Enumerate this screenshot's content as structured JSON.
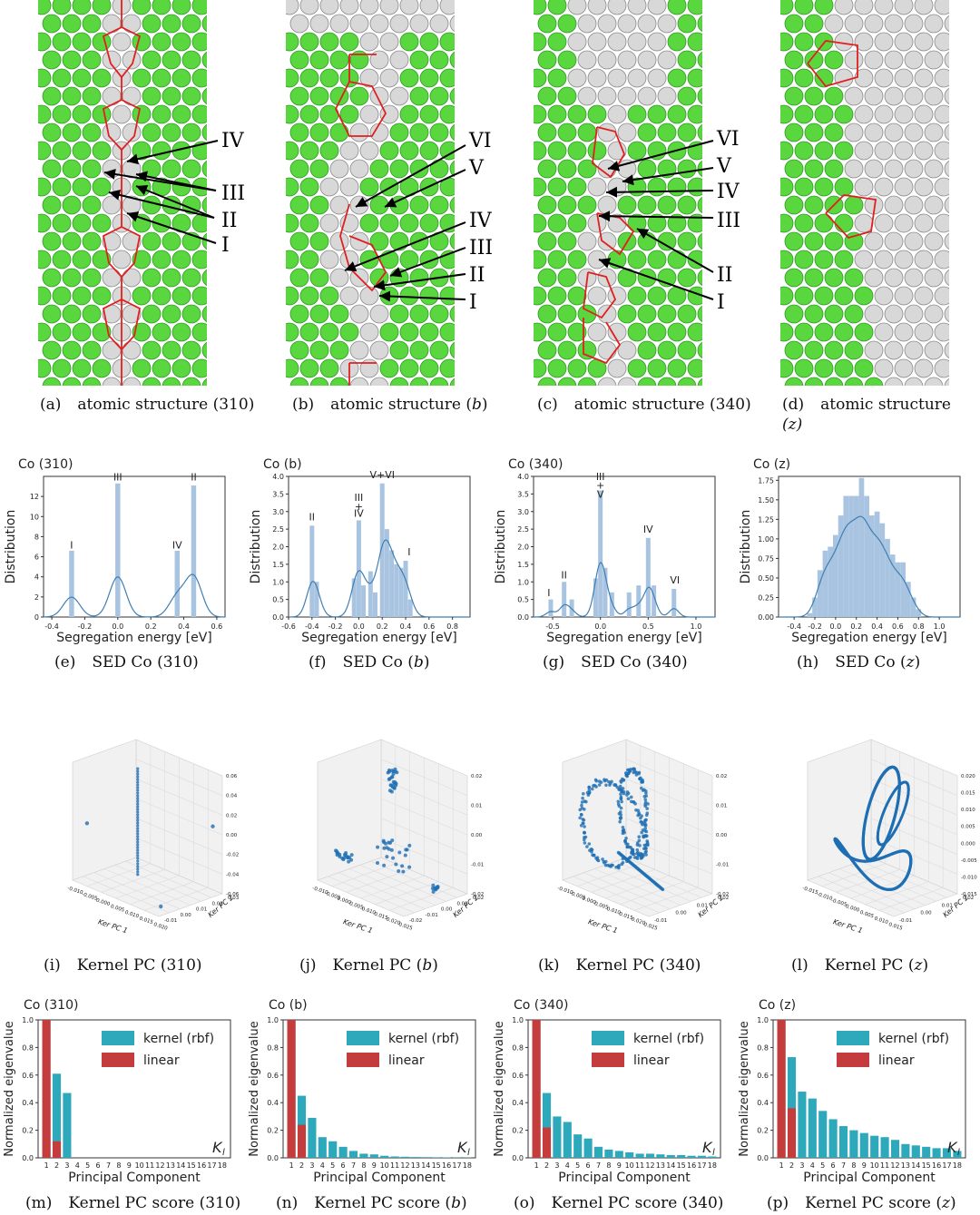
{
  "colors": {
    "green": "#5ad63f",
    "greenEdge": "#2f9a22",
    "grey": "#d8d8d8",
    "greyEdge": "#8a8a8a",
    "red": "#e02020",
    "hist": "#a9c4e0",
    "kde": "#3f7fb3",
    "kernel": "#2ea9bb",
    "linear": "#c43c3c",
    "scatter": "#1f6fb4"
  },
  "structure_panels": [
    {
      "letter": "(a)",
      "title": "atomic structure (310)",
      "labels": [
        "IV",
        "III",
        "II",
        "I"
      ]
    },
    {
      "letter": "(b)",
      "title": "atomic structure",
      "var": "b",
      "labels": [
        "VI",
        "V",
        "IV",
        "III",
        "II",
        "I"
      ]
    },
    {
      "letter": "(c)",
      "title": "atomic structure (340)",
      "labels": [
        "VI",
        "V",
        "IV",
        "III",
        "II",
        "I"
      ]
    },
    {
      "letter": "(d)",
      "title": "atomic structure",
      "var2": "(z)",
      "labels": []
    }
  ],
  "sed_captions": [
    {
      "letter": "(e)",
      "title": "SED Co (310)"
    },
    {
      "letter": "(f)",
      "title": "SED Co",
      "var": "b"
    },
    {
      "letter": "(g)",
      "title": "SED Co (340)"
    },
    {
      "letter": "(h)",
      "title": "SED Co",
      "var": "z"
    }
  ],
  "kpc_captions": [
    {
      "letter": "(i)",
      "title": "Kernel PC (310)"
    },
    {
      "letter": "(j)",
      "title": "Kernel PC",
      "var": "b"
    },
    {
      "letter": "(k)",
      "title": "Kernel PC (340)"
    },
    {
      "letter": "(l)",
      "title": "Kernel PC",
      "var": "z"
    }
  ],
  "score_captions": [
    {
      "letter": "(m)",
      "title": "Kernel PC score (310)"
    },
    {
      "letter": "(n)",
      "title": "Kernel PC score",
      "var": "b"
    },
    {
      "letter": "(o)",
      "title": "Kernel PC score (340)"
    },
    {
      "letter": "(p)",
      "title": "Kernel PC score",
      "var": "z"
    }
  ],
  "chart_data": [
    {
      "type": "bar",
      "panel": "e",
      "title": "Co (310)",
      "xlabel": "Segregation energy [eV]",
      "ylabel": "Distribution",
      "xlim": [
        -0.45,
        0.65
      ],
      "ylim": [
        0,
        14
      ],
      "xticks": [
        "-0.4",
        "-0.2",
        "0.0",
        "0.2",
        "0.4",
        "0.6"
      ],
      "yticks": [
        "0",
        "2",
        "4",
        "6",
        "8",
        "10",
        "12"
      ],
      "bars": [
        {
          "x": -0.28,
          "y": 6.6
        },
        {
          "x": 0.0,
          "y": 13.3
        },
        {
          "x": 0.36,
          "y": 6.6
        },
        {
          "x": 0.46,
          "y": 13.1
        }
      ],
      "annotations": [
        {
          "text": "I",
          "x": -0.28,
          "y": 6.8
        },
        {
          "text": "III",
          "x": 0.0,
          "y": 13.6
        },
        {
          "text": "IV",
          "x": 0.36,
          "y": 6.8
        },
        {
          "text": "II",
          "x": 0.46,
          "y": 13.6
        }
      ]
    },
    {
      "type": "bar",
      "panel": "f",
      "title": "Co (b)",
      "xlabel": "Segregation energy [eV]",
      "ylabel": "Distribution",
      "xlim": [
        -0.6,
        0.95
      ],
      "ylim": [
        0,
        4.0
      ],
      "xticks": [
        "-0.6",
        "-0.4",
        "-0.2",
        "0.0",
        "0.2",
        "0.4",
        "0.6",
        "0.8"
      ],
      "yticks": [
        "0.0",
        "0.5",
        "1.0",
        "1.5",
        "2.0",
        "2.5",
        "3.0",
        "3.5",
        "4.0"
      ],
      "bars": [
        {
          "x": -0.4,
          "y": 2.6
        },
        {
          "x": -0.36,
          "y": 1.0
        },
        {
          "x": -0.04,
          "y": 1.1
        },
        {
          "x": 0.0,
          "y": 2.75
        },
        {
          "x": 0.04,
          "y": 0.9
        },
        {
          "x": 0.1,
          "y": 1.3
        },
        {
          "x": 0.14,
          "y": 0.7
        },
        {
          "x": 0.2,
          "y": 3.8
        },
        {
          "x": 0.24,
          "y": 2.5
        },
        {
          "x": 0.28,
          "y": 1.9
        },
        {
          "x": 0.32,
          "y": 1.5
        },
        {
          "x": 0.36,
          "y": 1.4
        },
        {
          "x": 0.4,
          "y": 1.6
        },
        {
          "x": 0.44,
          "y": 0.5
        }
      ],
      "annotations": [
        {
          "text": "II",
          "x": -0.4,
          "y": 2.75
        },
        {
          "text": "III",
          "x": 0.0,
          "y": 3.3
        },
        {
          "text": "+",
          "x": 0.0,
          "y": 3.05
        },
        {
          "text": "IV",
          "x": 0.0,
          "y": 2.85
        },
        {
          "text": "V+VI",
          "x": 0.2,
          "y": 3.95
        },
        {
          "text": "I",
          "x": 0.43,
          "y": 1.75
        }
      ]
    },
    {
      "type": "bar",
      "panel": "g",
      "title": "Co (340)",
      "xlabel": "Segregation energy [eV]",
      "ylabel": "Distribution",
      "xlim": [
        -0.7,
        1.2
      ],
      "ylim": [
        0,
        4.0
      ],
      "xticks": [
        "-0.5",
        "0.0",
        "0.5",
        "1.0"
      ],
      "yticks": [
        "0.0",
        "0.5",
        "1.0",
        "1.5",
        "2.0",
        "2.5",
        "3.0",
        "3.5",
        "4.0"
      ],
      "bars": [
        {
          "x": -0.52,
          "y": 0.5
        },
        {
          "x": -0.38,
          "y": 1.0
        },
        {
          "x": -0.3,
          "y": 0.5
        },
        {
          "x": -0.05,
          "y": 1.1
        },
        {
          "x": 0.0,
          "y": 3.6
        },
        {
          "x": 0.05,
          "y": 1.4
        },
        {
          "x": 0.12,
          "y": 0.7
        },
        {
          "x": 0.3,
          "y": 0.7
        },
        {
          "x": 0.4,
          "y": 0.9
        },
        {
          "x": 0.5,
          "y": 2.25
        },
        {
          "x": 0.56,
          "y": 0.9
        },
        {
          "x": 0.77,
          "y": 0.8
        }
      ],
      "annotations": [
        {
          "text": "I",
          "x": -0.54,
          "y": 0.6
        },
        {
          "text": "II",
          "x": -0.38,
          "y": 1.1
        },
        {
          "text": "III",
          "x": 0.0,
          "y": 3.9
        },
        {
          "text": "+",
          "x": 0.0,
          "y": 3.65
        },
        {
          "text": "V",
          "x": 0.0,
          "y": 3.4
        },
        {
          "text": "IV",
          "x": 0.5,
          "y": 2.4
        },
        {
          "text": "VI",
          "x": 0.78,
          "y": 0.95
        }
      ]
    },
    {
      "type": "bar",
      "panel": "h",
      "title": "Co (z)",
      "xlabel": "Segregation energy [eV]",
      "ylabel": "Distribution",
      "xlim": [
        -0.55,
        1.2
      ],
      "ylim": [
        0,
        1.8
      ],
      "xticks": [
        "-0.4",
        "-0.2",
        "0.0",
        "0.2",
        "0.4",
        "0.6",
        "0.8",
        "1.0"
      ],
      "yticks": [
        "0.00",
        "0.25",
        "0.50",
        "0.75",
        "1.00",
        "1.25",
        "1.50",
        "1.75"
      ],
      "bars": [
        {
          "x": -0.25,
          "y": 0.05
        },
        {
          "x": -0.2,
          "y": 0.25
        },
        {
          "x": -0.15,
          "y": 0.6
        },
        {
          "x": -0.1,
          "y": 0.85
        },
        {
          "x": -0.05,
          "y": 0.9
        },
        {
          "x": 0.0,
          "y": 1.05
        },
        {
          "x": 0.05,
          "y": 1.3
        },
        {
          "x": 0.1,
          "y": 1.55
        },
        {
          "x": 0.15,
          "y": 1.55
        },
        {
          "x": 0.2,
          "y": 1.55
        },
        {
          "x": 0.25,
          "y": 1.78
        },
        {
          "x": 0.3,
          "y": 1.55
        },
        {
          "x": 0.35,
          "y": 1.3
        },
        {
          "x": 0.4,
          "y": 1.35
        },
        {
          "x": 0.45,
          "y": 1.2
        },
        {
          "x": 0.5,
          "y": 1.0
        },
        {
          "x": 0.55,
          "y": 0.8
        },
        {
          "x": 0.6,
          "y": 0.7
        },
        {
          "x": 0.65,
          "y": 0.7
        },
        {
          "x": 0.7,
          "y": 0.45
        },
        {
          "x": 0.75,
          "y": 0.25
        },
        {
          "x": 0.8,
          "y": 0.1
        }
      ],
      "annotations": []
    },
    {
      "type": "scatter",
      "panel": "i",
      "axis_labels": [
        "Ker PC 1",
        "Ker PC 2",
        "Ker PC 3"
      ],
      "xticks": [
        "-0.010",
        "-0.005",
        "0.000",
        "0.005",
        "0.010",
        "0.015",
        "0.020"
      ],
      "yticks": [
        "-0.01",
        "0.00",
        "0.01",
        "0.02",
        "0.03"
      ],
      "zticks": [
        "-0.06",
        "-0.04",
        "-0.02",
        "0.00",
        "0.02",
        "0.04",
        "0.06"
      ]
    },
    {
      "type": "scatter",
      "panel": "j",
      "axis_labels": [
        "Ker PC 1",
        "Ker PC 2",
        "Ker PC 3"
      ],
      "xticks": [
        "-0.010",
        "-0.005",
        "0.000",
        "0.005",
        "0.010",
        "0.015",
        "0.020",
        "0.025"
      ],
      "yticks": [
        "-0.02",
        "-0.01",
        "0.00",
        "0.01",
        "0.02"
      ],
      "zticks": [
        "-0.02",
        "-0.01",
        "0.00",
        "0.01",
        "0.02"
      ]
    },
    {
      "type": "scatter",
      "panel": "k",
      "axis_labels": [
        "Ker PC 1",
        "Ker PC 2",
        "Ker PC 3"
      ],
      "xticks": [
        "-0.010",
        "-0.005",
        "0.000",
        "0.005",
        "0.010",
        "0.015",
        "0.020",
        "0.025"
      ],
      "yticks": [
        "-0.01",
        "0.00",
        "0.01",
        "0.02"
      ],
      "zticks": [
        "-0.02",
        "-0.01",
        "0.00",
        "0.01",
        "0.02"
      ]
    },
    {
      "type": "scatter",
      "panel": "l",
      "axis_labels": [
        "Ker PC 1",
        "Ker PC 2",
        "Ker PC 3"
      ],
      "xticks": [
        "-0.015",
        "-0.010",
        "-0.005",
        "0.000",
        "0.005",
        "0.010",
        "0.015"
      ],
      "yticks": [
        "-0.01",
        "0.00",
        "0.01",
        "0.02"
      ],
      "zticks": [
        "-0.015",
        "-0.010",
        "-0.005",
        "0.000",
        "0.005",
        "0.010",
        "0.015",
        "0.020"
      ]
    },
    {
      "type": "bar",
      "panel": "m",
      "title": "Co (310)",
      "xlabel": "Principal Component",
      "ylabel": "Normalized eigenvalue",
      "ylim": [
        0,
        1.0
      ],
      "corner": "K_l",
      "categories": [
        "1",
        "2",
        "3",
        "4",
        "5",
        "6",
        "7",
        "8",
        "9",
        "10",
        "11",
        "12",
        "13",
        "14",
        "15",
        "16",
        "17",
        "18"
      ],
      "yticks": [
        "0.0",
        "0.2",
        "0.4",
        "0.6",
        "0.8",
        "1.0"
      ],
      "series": [
        {
          "name": "kernel (rbf)",
          "values": [
            1.0,
            0.61,
            0.47,
            0,
            0,
            0,
            0,
            0,
            0,
            0,
            0,
            0,
            0,
            0,
            0,
            0,
            0,
            0
          ]
        },
        {
          "name": "linear",
          "values": [
            1.0,
            0.12,
            0,
            0,
            0,
            0,
            0,
            0,
            0,
            0,
            0,
            0,
            0,
            0,
            0,
            0,
            0,
            0
          ]
        }
      ]
    },
    {
      "type": "bar",
      "panel": "n",
      "title": "Co (b)",
      "xlabel": "Principal Component",
      "ylabel": "Normalized eigenvalue",
      "ylim": [
        0,
        1.0
      ],
      "corner": "K_l",
      "categories": [
        "1",
        "2",
        "3",
        "4",
        "5",
        "6",
        "7",
        "8",
        "9",
        "10",
        "11",
        "12",
        "13",
        "14",
        "15",
        "16",
        "17",
        "18"
      ],
      "yticks": [
        "0.0",
        "0.2",
        "0.4",
        "0.6",
        "0.8",
        "1.0"
      ],
      "series": [
        {
          "name": "kernel (rbf)",
          "values": [
            1.0,
            0.45,
            0.29,
            0.15,
            0.12,
            0.08,
            0.05,
            0.03,
            0.025,
            0.015,
            0.01,
            0.008,
            0.006,
            0.005,
            0.004,
            0.003,
            0.002,
            0.002
          ]
        },
        {
          "name": "linear",
          "values": [
            1.0,
            0.24,
            0,
            0,
            0,
            0,
            0,
            0,
            0,
            0,
            0,
            0,
            0,
            0,
            0,
            0,
            0,
            0
          ]
        }
      ]
    },
    {
      "type": "bar",
      "panel": "o",
      "title": "Co (340)",
      "xlabel": "Principal Component",
      "ylabel": "Normalized eigenvalue",
      "ylim": [
        0,
        1.0
      ],
      "corner": "K_l",
      "categories": [
        "1",
        "2",
        "3",
        "4",
        "5",
        "6",
        "7",
        "8",
        "9",
        "10",
        "11",
        "12",
        "13",
        "14",
        "15",
        "16",
        "17",
        "18"
      ],
      "yticks": [
        "0.0",
        "0.2",
        "0.4",
        "0.6",
        "0.8",
        "1.0"
      ],
      "series": [
        {
          "name": "kernel (rbf)",
          "values": [
            1.0,
            0.47,
            0.3,
            0.26,
            0.17,
            0.14,
            0.08,
            0.06,
            0.05,
            0.04,
            0.03,
            0.03,
            0.025,
            0.02,
            0.02,
            0.015,
            0.015,
            0.01
          ]
        },
        {
          "name": "linear",
          "values": [
            1.0,
            0.22,
            0,
            0,
            0,
            0,
            0,
            0,
            0,
            0,
            0,
            0,
            0,
            0,
            0,
            0,
            0,
            0
          ]
        }
      ]
    },
    {
      "type": "bar",
      "panel": "p",
      "title": "Co (z)",
      "xlabel": "Principal Component",
      "ylabel": "Normalized eigenvalue",
      "ylim": [
        0,
        1.0
      ],
      "corner": "K_l",
      "categories": [
        "1",
        "2",
        "3",
        "4",
        "5",
        "6",
        "7",
        "8",
        "9",
        "10",
        "11",
        "12",
        "13",
        "14",
        "15",
        "16",
        "17",
        "18"
      ],
      "yticks": [
        "0.0",
        "0.2",
        "0.4",
        "0.6",
        "0.8",
        "1.0"
      ],
      "series": [
        {
          "name": "kernel (rbf)",
          "values": [
            1.0,
            0.73,
            0.48,
            0.43,
            0.34,
            0.28,
            0.23,
            0.2,
            0.18,
            0.16,
            0.15,
            0.13,
            0.1,
            0.09,
            0.08,
            0.07,
            0.07,
            0.05
          ]
        },
        {
          "name": "linear",
          "values": [
            1.0,
            0.36,
            0,
            0,
            0,
            0,
            0,
            0,
            0,
            0,
            0,
            0,
            0,
            0,
            0,
            0,
            0,
            0
          ]
        }
      ]
    }
  ]
}
